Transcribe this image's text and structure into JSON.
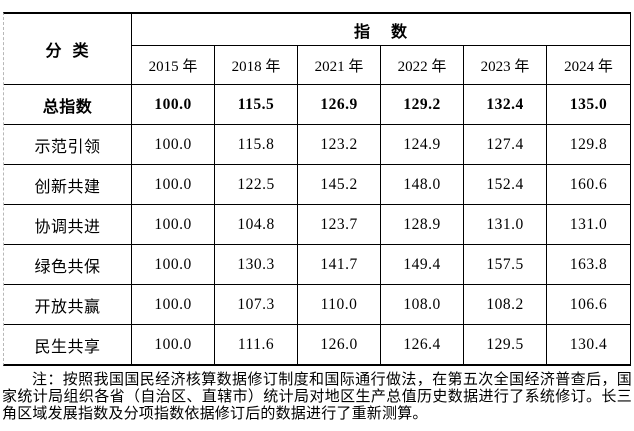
{
  "table": {
    "header": {
      "category_label": "分  类",
      "index_label": "指    数",
      "years": [
        "2015 年",
        "2018 年",
        "2021 年",
        "2022 年",
        "2023 年",
        "2024 年"
      ]
    },
    "rows": [
      {
        "label": "总指数",
        "values": [
          "100.0",
          "115.5",
          "126.9",
          "129.2",
          "132.4",
          "135.0"
        ]
      },
      {
        "label": "示范引领",
        "values": [
          "100.0",
          "115.8",
          "123.2",
          "124.9",
          "127.4",
          "129.8"
        ]
      },
      {
        "label": "创新共建",
        "values": [
          "100.0",
          "122.5",
          "145.2",
          "148.0",
          "152.4",
          "160.6"
        ]
      },
      {
        "label": "协调共进",
        "values": [
          "100.0",
          "104.8",
          "123.7",
          "128.9",
          "131.0",
          "131.0"
        ]
      },
      {
        "label": "绿色共保",
        "values": [
          "100.0",
          "130.3",
          "141.7",
          "149.4",
          "157.5",
          "163.8"
        ]
      },
      {
        "label": "开放共赢",
        "values": [
          "100.0",
          "107.3",
          "110.0",
          "108.0",
          "108.2",
          "106.6"
        ]
      },
      {
        "label": "民生共享",
        "values": [
          "100.0",
          "111.6",
          "126.0",
          "126.4",
          "129.5",
          "130.4"
        ]
      }
    ]
  },
  "note": "注：按照我国国民经济核算数据修订制度和国际通行做法，在第五次全国经济普查后，国家统计局组织各省（自治区、直辖市）统计局对地区生产总值历史数据进行了系统修订。长三角区域发展指数及分项指数依据修订后的数据进行了重新测算。"
}
